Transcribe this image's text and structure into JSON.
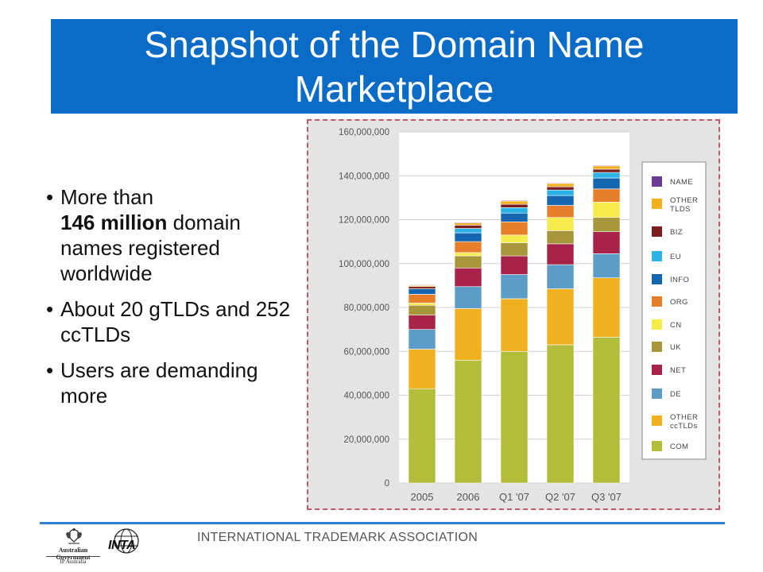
{
  "slide": {
    "title": "Snapshot of the Domain Name Marketplace",
    "bullets": [
      {
        "bold": "",
        "pre": "More than ",
        "strong": "146 million",
        "post": " domain names registered worldwide"
      },
      {
        "pre": "About 20 gTLDs and 252 ccTLDs"
      },
      {
        "pre": "Users are demanding more"
      }
    ],
    "footer": "INTERNATIONAL TRADEMARK ASSOCIATION",
    "logos": {
      "gov_line1": "Australian Government",
      "gov_line2": "IP Australia",
      "inta": "INTA"
    }
  },
  "colors": {
    "title_bg": "#0b6cc8",
    "Com": "#b2bd3a",
    "Other ccTLDs": "#f0b020",
    "De": "#5b9dc6",
    "Net": "#a8234a",
    "Uk": "#a8963a",
    "Cn": "#f5eb4a",
    "Org": "#e77f2a",
    "Info": "#1466b0",
    "Eu": "#2bb3e6",
    "Biz": "#7a1e1e",
    "Other TLDs": "#f0b020",
    "Name": "#6a3a94"
  },
  "chart_data": {
    "type": "bar",
    "stacked": true,
    "categories": [
      "2005",
      "2006",
      "Q1 '07",
      "Q2 '07",
      "Q3 '07"
    ],
    "ylim": [
      0,
      160000000
    ],
    "yticks": [
      "0",
      "20,000,000",
      "40,000,000",
      "60,000,000",
      "80,000,000",
      "100,000,000",
      "120,000,000",
      "140,000,000",
      "160,000,000"
    ],
    "ytick_values": [
      0,
      20000000,
      40000000,
      60000000,
      80000000,
      100000000,
      120000000,
      140000000,
      160000000
    ],
    "grid": true,
    "legend_position": "right",
    "series": [
      {
        "name": "Com",
        "values": [
          43000000,
          56000000,
          60000000,
          63000000,
          66500000
        ]
      },
      {
        "name": "Other ccTLDs",
        "values": [
          18000000,
          23500000,
          24000000,
          25500000,
          27000000
        ]
      },
      {
        "name": "De",
        "values": [
          9000000,
          10000000,
          11000000,
          11000000,
          11000000
        ]
      },
      {
        "name": "Net",
        "values": [
          6500000,
          8500000,
          8500000,
          9500000,
          10000000
        ]
      },
      {
        "name": "Uk",
        "values": [
          4500000,
          5500000,
          6000000,
          6000000,
          6500000
        ]
      },
      {
        "name": "Cn",
        "values": [
          1000000,
          1500000,
          3500000,
          6000000,
          7000000
        ]
      },
      {
        "name": "Org",
        "values": [
          4000000,
          5000000,
          6000000,
          5500000,
          6000000
        ]
      },
      {
        "name": "Info",
        "values": [
          2500000,
          4000000,
          4000000,
          4500000,
          5000000
        ]
      },
      {
        "name": "Eu",
        "values": [
          0,
          2000000,
          2500000,
          2500000,
          2500000
        ]
      },
      {
        "name": "Biz",
        "values": [
          1000000,
          1500000,
          1500000,
          1500000,
          1500000
        ]
      },
      {
        "name": "Other TLDs",
        "values": [
          500000,
          1000000,
          1500000,
          1500000,
          1500000
        ]
      },
      {
        "name": "Name",
        "values": [
          300000,
          300000,
          300000,
          300000,
          300000
        ]
      }
    ],
    "legend": [
      {
        "key": "Name",
        "label": "Name"
      },
      {
        "key": "Other TLDs",
        "label": "Other TLDs"
      },
      {
        "key": "Biz",
        "label": "Biz"
      },
      {
        "key": "Eu",
        "label": "Eu"
      },
      {
        "key": "Info",
        "label": "Info"
      },
      {
        "key": "Org",
        "label": "Org"
      },
      {
        "key": "Cn",
        "label": "Cn"
      },
      {
        "key": "Uk",
        "label": "Uk"
      },
      {
        "key": "Net",
        "label": "Net"
      },
      {
        "key": "De",
        "label": "De"
      },
      {
        "key": "Other ccTLDs",
        "label": "Other ccTLDs"
      },
      {
        "key": "Com",
        "label": "Com"
      }
    ]
  }
}
